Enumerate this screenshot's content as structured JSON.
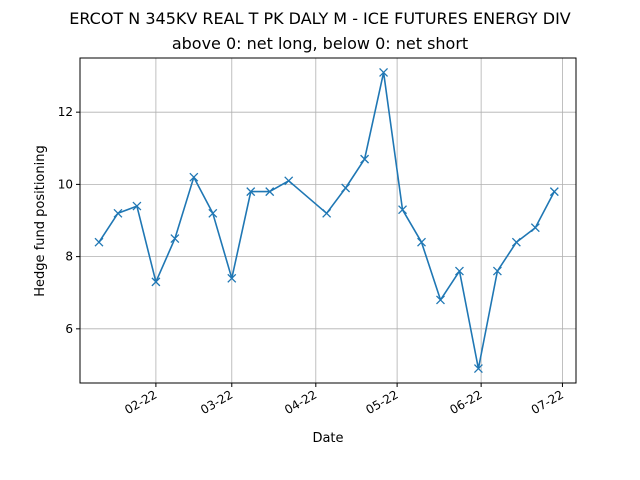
{
  "chart_data": {
    "type": "line",
    "title": "ERCOT N 345KV REAL T PK DALY M - ICE FUTURES ENERGY DIV",
    "subtitle": "above 0: net long, below 0: net short",
    "xlabel": "Date",
    "ylabel": "Hedge fund positioning",
    "grid": true,
    "marker": "x",
    "line_color": "#1f77b4",
    "x_tick_labels": [
      "02-22",
      "03-22",
      "04-22",
      "05-22",
      "06-22",
      "07-22"
    ],
    "x_tick_dates": [
      "2022-02-01",
      "2022-03-01",
      "2022-04-01",
      "2022-05-01",
      "2022-06-01",
      "2022-07-01"
    ],
    "y_ticks": [
      6,
      8,
      10,
      12
    ],
    "xlim": [
      "2022-01-04",
      "2022-07-06"
    ],
    "ylim": [
      4.5,
      13.5
    ],
    "series": [
      {
        "x": [
          "2022-01-11",
          "2022-01-18",
          "2022-01-25",
          "2022-02-01",
          "2022-02-08",
          "2022-02-15",
          "2022-02-22",
          "2022-03-01",
          "2022-03-08",
          "2022-03-15",
          "2022-03-22",
          "2022-04-05",
          "2022-04-12",
          "2022-04-19",
          "2022-04-26",
          "2022-05-03",
          "2022-05-10",
          "2022-05-17",
          "2022-05-24",
          "2022-05-31",
          "2022-06-07",
          "2022-06-14",
          "2022-06-21",
          "2022-06-28"
        ],
        "values": [
          8.4,
          9.2,
          9.4,
          7.3,
          8.5,
          10.2,
          9.2,
          7.4,
          9.8,
          9.8,
          10.1,
          9.2,
          9.9,
          10.7,
          13.1,
          9.3,
          8.4,
          6.8,
          7.6,
          4.9,
          7.6,
          8.4,
          8.8,
          9.8
        ]
      }
    ]
  }
}
